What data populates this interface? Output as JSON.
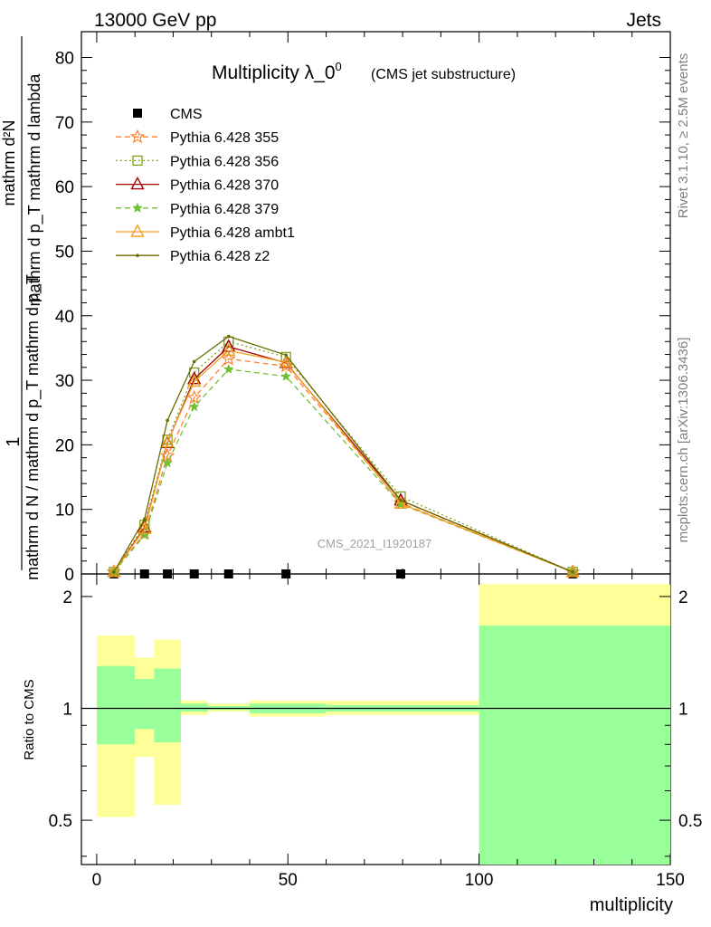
{
  "header": {
    "left": "13000 GeV pp",
    "right": "Jets"
  },
  "side": {
    "top": "Rivet 3.1.10, ≥ 2.5M events",
    "bottom": "mcplots.cern.ch [arXiv:1306.3436]"
  },
  "colors": {
    "cms": "#000000",
    "p355": "#ff7f2a",
    "p356": "#80a020",
    "p370": "#a00000",
    "p379": "#70c030",
    "ambt1": "#f0a020",
    "z2": "#6b6b00",
    "band_yellow": "#ffff99",
    "band_green": "#99ff99"
  },
  "chart_data": [
    {
      "type": "line",
      "title": "Multiplicity λ_0",
      "title_sup": "0",
      "subtitle": "(CMS jet substructure)",
      "watermark": "CMS_2021_I1920187",
      "xlabel": "multiplicity",
      "ylabel_num": "1",
      "ylabel_den": "mathrm d N / mathrm d p_T mathrm d p_T",
      "ylabel_frac": "mathrm d²N",
      "ylabel_frac_den": "mathrm d p_T mathrm d lambda",
      "xlim": [
        -4,
        150
      ],
      "ylim": [
        0,
        84
      ],
      "y_ticks": [
        0,
        10,
        20,
        30,
        40,
        50,
        60,
        70,
        80
      ],
      "x_ticks": [
        0,
        50,
        100,
        150
      ],
      "legend_position": "top-left",
      "series": [
        {
          "name": "CMS",
          "marker": "square",
          "x": [
            4.5,
            12.5,
            18.5,
            25.5,
            34.5,
            49.5,
            79.5,
            124.5
          ],
          "y": [
            0.0,
            0.0,
            0.0,
            0.0,
            0.0,
            0.0,
            0.0,
            0.0
          ]
        },
        {
          "name": "Pythia 6.428 355",
          "marker": "star-open",
          "dash": "dashed",
          "x": [
            4.5,
            12.5,
            18.5,
            25.5,
            34.5,
            49.5,
            79.5,
            124.5
          ],
          "y": [
            0.3,
            6.3,
            18.3,
            27.3,
            33.3,
            32.2,
            11.0,
            0.3
          ]
        },
        {
          "name": "Pythia 6.428 356",
          "marker": "square-open",
          "dash": "dotted",
          "x": [
            4.5,
            12.5,
            18.5,
            25.5,
            34.5,
            49.5,
            79.5,
            124.5
          ],
          "y": [
            0.3,
            7.6,
            20.8,
            31.2,
            36.0,
            33.6,
            12.0,
            0.3
          ]
        },
        {
          "name": "Pythia 6.428 370",
          "marker": "triangle-open",
          "dash": "solid",
          "x": [
            4.5,
            12.5,
            18.5,
            25.5,
            34.5,
            49.5,
            79.5,
            124.5
          ],
          "y": [
            0.3,
            7.2,
            20.3,
            30.2,
            35.2,
            32.7,
            11.4,
            0.3
          ]
        },
        {
          "name": "Pythia 6.428 379",
          "marker": "star",
          "dash": "dashed",
          "x": [
            4.5,
            12.5,
            18.5,
            25.5,
            34.5,
            49.5,
            79.5,
            124.5
          ],
          "y": [
            0.3,
            6.0,
            17.2,
            25.9,
            31.7,
            30.6,
            10.8,
            0.3
          ]
        },
        {
          "name": "Pythia 6.428 ambt1",
          "marker": "triangle-open",
          "dash": "solid",
          "x": [
            4.5,
            12.5,
            18.5,
            25.5,
            34.5,
            49.5,
            79.5,
            124.5
          ],
          "y": [
            0.3,
            7.0,
            20.4,
            29.8,
            34.6,
            32.8,
            10.9,
            0.3
          ]
        },
        {
          "name": "Pythia 6.428 z2",
          "marker": "dot",
          "dash": "solid",
          "x": [
            4.5,
            12.5,
            18.5,
            25.5,
            34.5,
            49.5,
            79.5,
            124.5
          ],
          "y": [
            0.3,
            8.5,
            23.8,
            32.9,
            36.8,
            33.9,
            11.4,
            0.3
          ]
        }
      ]
    },
    {
      "type": "area",
      "ylabel": "Ratio to CMS",
      "xlabel": "multiplicity",
      "ylim": [
        0.38,
        2.3
      ],
      "y_scale": "log",
      "y_ticks": [
        0.5,
        1,
        2
      ],
      "x_ticks": [
        0,
        50,
        100,
        150
      ],
      "reference_line": 1,
      "bins": [
        {
          "x0": 0,
          "x1": 10,
          "stat_lo": 0.8,
          "stat_hi": 1.3,
          "tot_lo": 0.51,
          "tot_hi": 1.57
        },
        {
          "x0": 10,
          "x1": 15,
          "stat_lo": 0.88,
          "stat_hi": 1.2,
          "tot_lo": 0.74,
          "tot_hi": 1.37
        },
        {
          "x0": 15,
          "x1": 22,
          "stat_lo": 0.81,
          "stat_hi": 1.28,
          "tot_lo": 0.55,
          "tot_hi": 1.53
        },
        {
          "x0": 22,
          "x1": 29,
          "stat_lo": 0.98,
          "stat_hi": 1.03,
          "tot_lo": 0.96,
          "tot_hi": 1.05
        },
        {
          "x0": 29,
          "x1": 40,
          "stat_lo": 0.99,
          "stat_hi": 1.015,
          "tot_lo": 0.98,
          "tot_hi": 1.03
        },
        {
          "x0": 40,
          "x1": 60,
          "stat_lo": 0.97,
          "stat_hi": 1.03,
          "tot_lo": 0.95,
          "tot_hi": 1.05
        },
        {
          "x0": 60,
          "x1": 100,
          "stat_lo": 0.98,
          "stat_hi": 1.02,
          "tot_lo": 0.96,
          "tot_hi": 1.05
        },
        {
          "x0": 100,
          "x1": 150,
          "stat_lo": 0.38,
          "stat_hi": 1.67,
          "tot_lo": 0.38,
          "tot_hi": 2.16
        }
      ]
    }
  ]
}
